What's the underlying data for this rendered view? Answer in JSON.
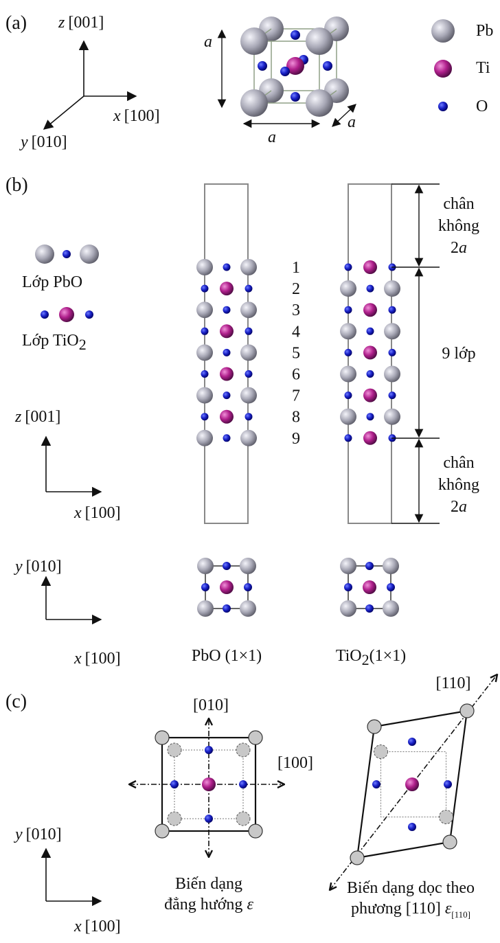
{
  "panel_a": {
    "label": "(a)",
    "axis_z": [
      "z",
      "[001]"
    ],
    "axis_x": [
      "x",
      "[100]"
    ],
    "axis_y": [
      "y",
      "[010]"
    ],
    "lattice_constant": "a",
    "legend": [
      "Pb",
      "Ti",
      "O"
    ]
  },
  "panel_b": {
    "label": "(b)",
    "layer_pbo": "Lớp PbO",
    "layer_tio2": [
      "Lớp TiO",
      "2"
    ],
    "layer_numbers": [
      "1",
      "2",
      "3",
      "4",
      "5",
      "6",
      "7",
      "8",
      "9"
    ],
    "vacuum": [
      "chân",
      "không",
      "2",
      "a"
    ],
    "slab_thickness": "9 lớp",
    "axis_z": [
      "z",
      "[001]"
    ],
    "axis_x": [
      "x",
      "[100]"
    ],
    "axis_y": [
      "y",
      "[010]"
    ],
    "caption_pbo": "PbO (1×1)",
    "caption_tio2": [
      "TiO",
      "2",
      "(1×1)"
    ]
  },
  "panel_c": {
    "label": "(c)",
    "direction_010": "[010]",
    "direction_100": "[100]",
    "direction_110": "[110]",
    "axis_y": [
      "y",
      "[010]"
    ],
    "axis_x": [
      "x",
      "[100]"
    ],
    "caption_isotropic": [
      "Biến dạng",
      "đẳng hướng",
      "ε"
    ],
    "caption_uniaxial": [
      "Biến dạng dọc theo",
      "phương [110] ",
      "ε",
      "[110]"
    ]
  }
}
